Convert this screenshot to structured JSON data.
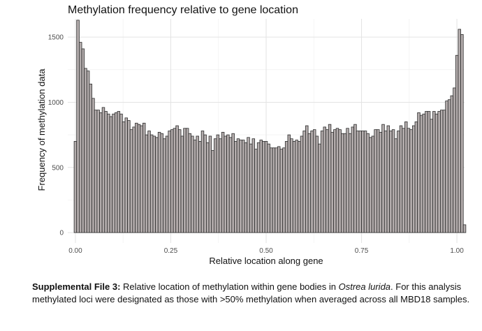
{
  "chart_data": {
    "type": "bar",
    "title": "Methylation frequency relative to gene location",
    "xlabel": "Relative location along gene",
    "ylabel": "Frequency of methylation data",
    "xlim": [
      -0.02,
      1.02
    ],
    "ylim": [
      -80,
      1640
    ],
    "x_ticks": [
      0.0,
      0.25,
      0.5,
      0.75,
      1.0
    ],
    "x_tick_labels": [
      "0.00",
      "0.25",
      "0.50",
      "0.75",
      "1.00"
    ],
    "y_ticks": [
      0,
      500,
      1000,
      1500
    ],
    "y_tick_labels": [
      "0",
      "500",
      "1000",
      "1500"
    ],
    "grid": true,
    "legend": "none",
    "bin_width": 0.006667,
    "bin_centers_start": 0.0,
    "fill_color": "#b5aeae",
    "edge_color": "#2a2a2a",
    "values": [
      700,
      1630,
      1460,
      1410,
      1260,
      1240,
      1140,
      1030,
      940,
      940,
      920,
      960,
      930,
      910,
      890,
      910,
      920,
      930,
      910,
      850,
      880,
      860,
      790,
      810,
      840,
      830,
      820,
      840,
      750,
      780,
      750,
      740,
      730,
      770,
      760,
      720,
      740,
      780,
      790,
      800,
      820,
      790,
      740,
      800,
      800,
      760,
      740,
      710,
      740,
      700,
      780,
      750,
      690,
      740,
      630,
      720,
      750,
      720,
      770,
      740,
      750,
      730,
      760,
      700,
      720,
      710,
      710,
      690,
      730,
      680,
      720,
      640,
      690,
      710,
      700,
      700,
      680,
      650,
      650,
      650,
      660,
      640,
      650,
      700,
      750,
      720,
      700,
      710,
      700,
      740,
      780,
      820,
      760,
      780,
      790,
      740,
      680,
      780,
      810,
      790,
      830,
      770,
      790,
      800,
      790,
      760,
      760,
      800,
      760,
      810,
      830,
      780,
      780,
      780,
      780,
      760,
      730,
      740,
      790,
      790,
      770,
      830,
      780,
      820,
      780,
      790,
      720,
      780,
      820,
      800,
      850,
      800,
      790,
      820,
      850,
      920,
      900,
      910,
      930,
      930,
      870,
      930,
      910,
      930,
      940,
      940,
      1010,
      1020,
      1050,
      1110,
      1360,
      1560,
      1520,
      60
    ]
  },
  "caption": {
    "label": "Supplemental File 3:",
    "text_before_species": " Relative location of methylation within gene bodies in ",
    "species": "Ostrea lurida",
    "text_after_species": ". For this analysis methylated loci were designated as those with >50% methylation when averaged across all MBD18 samples."
  }
}
